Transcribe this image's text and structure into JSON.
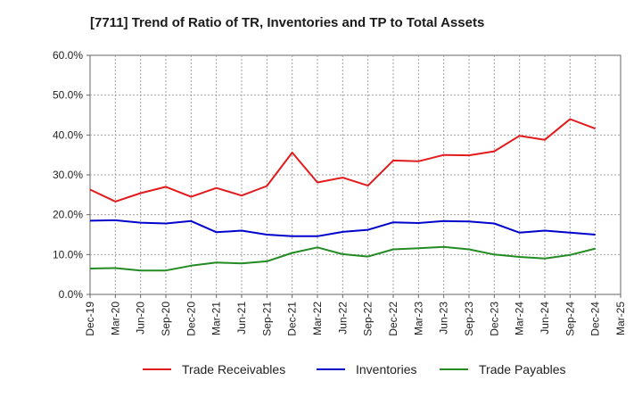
{
  "chart_data": {
    "type": "line",
    "title": "[7711]  Trend of Ratio of TR, Inventories and TP to Total Assets",
    "xlabel": "",
    "ylabel": "",
    "ylim": [
      0,
      60
    ],
    "y_ticks": [
      "0.0%",
      "10.0%",
      "20.0%",
      "30.0%",
      "40.0%",
      "50.0%",
      "60.0%"
    ],
    "x_ticks": [
      "Dec-19",
      "Mar-20",
      "Jun-20",
      "Sep-20",
      "Dec-20",
      "Mar-21",
      "Jun-21",
      "Sep-21",
      "Dec-21",
      "Mar-22",
      "Jun-22",
      "Sep-22",
      "Dec-22",
      "Mar-23",
      "Jun-23",
      "Sep-23",
      "Dec-23",
      "Mar-24",
      "Jun-24",
      "Sep-24",
      "Dec-24",
      "Mar-25"
    ],
    "x": [
      "Dec-19",
      "Mar-20",
      "Jun-20",
      "Sep-20",
      "Dec-20",
      "Mar-21",
      "Jun-21",
      "Sep-21",
      "Dec-21",
      "Mar-22",
      "Jun-22",
      "Sep-22",
      "Dec-22",
      "Mar-23",
      "Jun-23",
      "Sep-23",
      "Dec-23",
      "Mar-24",
      "Jun-24",
      "Sep-24",
      "Dec-24"
    ],
    "grid": true,
    "legend_position": "bottom",
    "series": [
      {
        "name": "Trade Receivables",
        "color": "#e31a1c",
        "values": [
          26.3,
          23.3,
          25.4,
          27.0,
          24.5,
          26.7,
          24.8,
          27.2,
          35.6,
          28.1,
          29.3,
          27.3,
          33.6,
          33.4,
          35.0,
          34.9,
          35.9,
          39.8,
          38.8,
          44.0,
          41.6
        ]
      },
      {
        "name": "Inventories",
        "color": "#0000cc",
        "values": [
          18.5,
          18.6,
          18.0,
          17.8,
          18.4,
          15.6,
          16.0,
          15.0,
          14.6,
          14.6,
          15.7,
          16.2,
          18.1,
          17.9,
          18.4,
          18.3,
          17.8,
          15.5,
          16.0,
          15.5,
          15.0
        ]
      },
      {
        "name": "Trade Payables",
        "color": "#228b22",
        "values": [
          6.5,
          6.6,
          6.0,
          6.0,
          7.2,
          8.0,
          7.8,
          8.3,
          10.4,
          11.8,
          10.1,
          9.5,
          11.3,
          11.6,
          11.9,
          11.3,
          10.0,
          9.4,
          9.0,
          9.9,
          11.5
        ]
      }
    ]
  }
}
